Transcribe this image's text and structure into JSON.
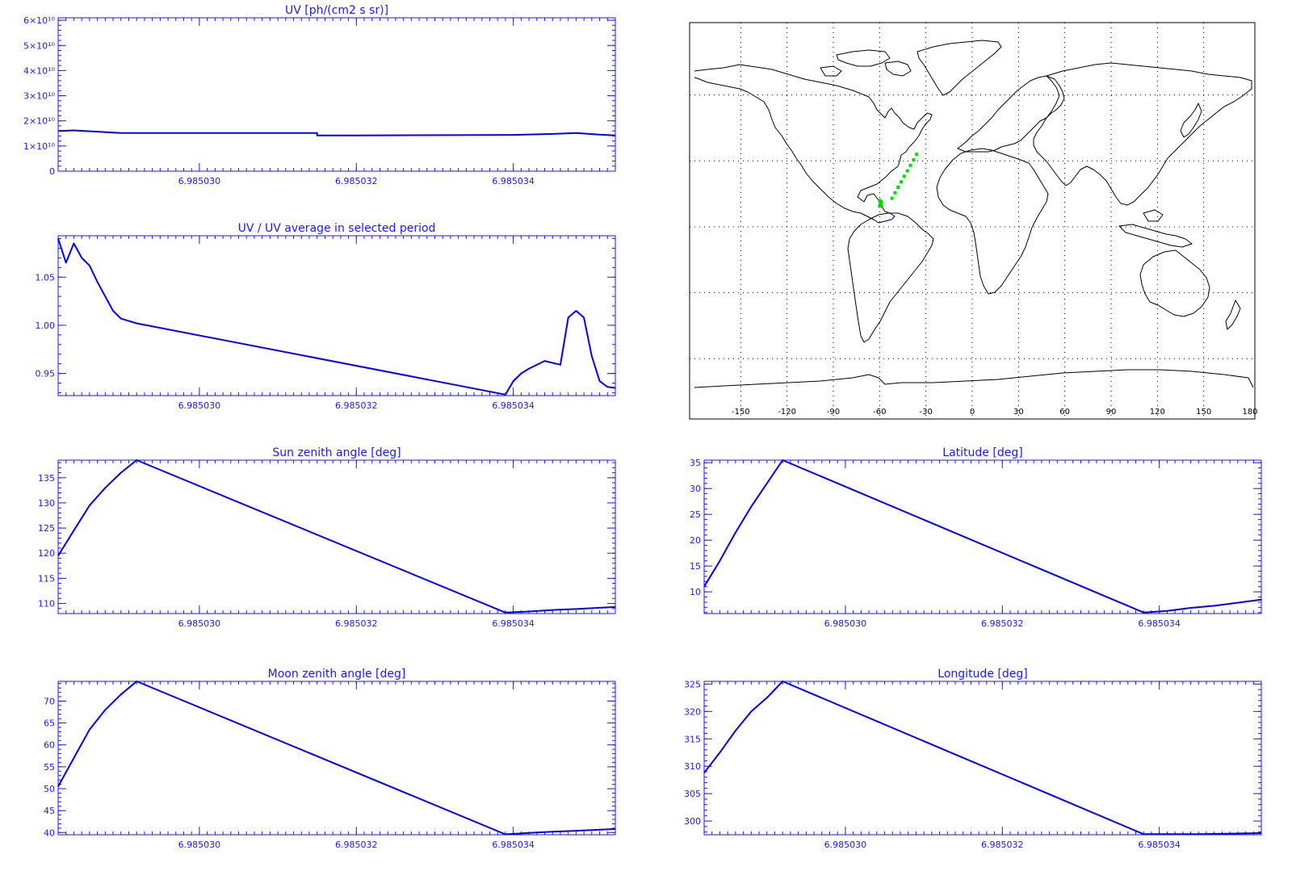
{
  "chart_data": [
    {
      "id": "uv",
      "type": "line",
      "title": "UV [ph/(cm2 s sr)]",
      "xlim": [
        6.9850282,
        6.9850353
      ],
      "xticks": [
        6.98503,
        6.985032,
        6.985034
      ],
      "xtick_labels": [
        "6.985030",
        "6.985032",
        "6.985034"
      ],
      "ylim": [
        0,
        61000000000.0
      ],
      "yticks": [
        0,
        10000000000.0,
        20000000000.0,
        30000000000.0,
        40000000000.0,
        50000000000.0,
        60000000000.0
      ],
      "ytick_labels": [
        "0",
        "1×10¹⁰",
        "2×10¹⁰",
        "3×10¹⁰",
        "4×10¹⁰",
        "5×10¹⁰",
        "6×10¹⁰"
      ],
      "x": [
        6.9850282,
        6.9850284,
        6.9850287,
        6.985029,
        6.9850315,
        6.9850315,
        6.985032,
        6.985034,
        6.9850345,
        6.9850348,
        6.9850351,
        6.9850353
      ],
      "y": [
        16000000000.0,
        16200000000.0,
        15700000000.0,
        15200000000.0,
        15200000000.0,
        14200000000.0,
        14200000000.0,
        14400000000.0,
        14800000000.0,
        15200000000.0,
        14500000000.0,
        14200000000.0
      ]
    },
    {
      "id": "uv_ratio",
      "type": "line",
      "title": "UV / UV average in selected period",
      "xlim": [
        6.9850282,
        6.9850353
      ],
      "xticks": [
        6.98503,
        6.985032,
        6.985034
      ],
      "xtick_labels": [
        "6.985030",
        "6.985032",
        "6.985034"
      ],
      "ylim": [
        0.927,
        1.093
      ],
      "yticks": [
        0.95,
        1.0,
        1.05
      ],
      "ytick_labels": [
        "0.95",
        "1.00",
        "1.05"
      ],
      "x": [
        6.9850282,
        6.9850283,
        6.9850284,
        6.9850285,
        6.9850286,
        6.9850287,
        6.9850288,
        6.9850289,
        6.985029,
        6.9850292,
        6.9850339,
        6.985034,
        6.9850341,
        6.9850342,
        6.9850344,
        6.9850346,
        6.9850347,
        6.9850348,
        6.9850349,
        6.985035,
        6.9850351,
        6.9850352,
        6.9850353
      ],
      "y": [
        1.09,
        1.065,
        1.085,
        1.07,
        1.062,
        1.045,
        1.03,
        1.015,
        1.007,
        1.002,
        0.928,
        0.942,
        0.95,
        0.955,
        0.963,
        0.959,
        1.008,
        1.015,
        1.008,
        0.968,
        0.942,
        0.936,
        0.935
      ]
    },
    {
      "id": "sza",
      "type": "line",
      "title": "Sun zenith angle [deg]",
      "xlim": [
        6.9850282,
        6.9850353
      ],
      "xticks": [
        6.98503,
        6.985032,
        6.985034
      ],
      "xtick_labels": [
        "6.985030",
        "6.985032",
        "6.985034"
      ],
      "ylim": [
        108,
        138.5
      ],
      "yticks": [
        110,
        115,
        120,
        125,
        130,
        135
      ],
      "ytick_labels": [
        "110",
        "115",
        "120",
        "125",
        "130",
        "135"
      ],
      "x": [
        6.9850282,
        6.9850284,
        6.9850286,
        6.9850288,
        6.985029,
        6.9850292,
        6.9850339,
        6.9850342,
        6.9850345,
        6.9850348,
        6.9850353
      ],
      "y": [
        119.5,
        124.5,
        129.5,
        133.0,
        136.0,
        138.5,
        108.2,
        108.4,
        108.7,
        108.9,
        109.3
      ]
    },
    {
      "id": "mza",
      "type": "line",
      "title": "Moon zenith angle [deg]",
      "xlim": [
        6.9850282,
        6.9850353
      ],
      "xticks": [
        6.98503,
        6.985032,
        6.985034
      ],
      "xtick_labels": [
        "6.985030",
        "6.985032",
        "6.985034"
      ],
      "ylim": [
        39.5,
        74.5
      ],
      "yticks": [
        40,
        45,
        50,
        55,
        60,
        65,
        70
      ],
      "ytick_labels": [
        "40",
        "45",
        "50",
        "55",
        "60",
        "65",
        "70"
      ],
      "x": [
        6.9850282,
        6.9850284,
        6.9850286,
        6.9850288,
        6.985029,
        6.9850292,
        6.9850339,
        6.9850342,
        6.9850345,
        6.9850348,
        6.9850353
      ],
      "y": [
        50.5,
        57.0,
        63.5,
        68.0,
        71.5,
        74.5,
        39.6,
        39.9,
        40.2,
        40.4,
        40.8
      ]
    },
    {
      "id": "lat",
      "type": "line",
      "title": "Latitude [deg]",
      "xlim": [
        6.9850282,
        6.9850353
      ],
      "xticks": [
        6.98503,
        6.985032,
        6.985034
      ],
      "xtick_labels": [
        "6.985030",
        "6.985032",
        "6.985034"
      ],
      "ylim": [
        5.8,
        35.5
      ],
      "yticks": [
        10,
        15,
        20,
        25,
        30,
        35
      ],
      "ytick_labels": [
        "10",
        "15",
        "20",
        "25",
        "30",
        "35"
      ],
      "x": [
        6.9850282,
        6.9850284,
        6.9850286,
        6.9850288,
        6.985029,
        6.9850292,
        6.9850338,
        6.9850341,
        6.9850344,
        6.9850347,
        6.985035,
        6.9850353
      ],
      "y": [
        11.0,
        16.0,
        21.5,
        26.5,
        31.0,
        35.5,
        6.0,
        6.3,
        6.9,
        7.3,
        7.9,
        8.5
      ]
    },
    {
      "id": "lon",
      "type": "line",
      "title": "Longitude [deg]",
      "xlim": [
        6.9850282,
        6.9850353
      ],
      "xticks": [
        6.98503,
        6.985032,
        6.985034
      ],
      "xtick_labels": [
        "6.985030",
        "6.985032",
        "6.985034"
      ],
      "ylim": [
        297.5,
        325.5
      ],
      "yticks": [
        300,
        305,
        310,
        315,
        320,
        325
      ],
      "ytick_labels": [
        "300",
        "305",
        "310",
        "315",
        "320",
        "325"
      ],
      "x": [
        6.9850282,
        6.9850284,
        6.9850286,
        6.9850288,
        6.985029,
        6.9850292,
        6.9850338,
        6.9850345,
        6.9850353
      ],
      "y": [
        308.8,
        312.5,
        316.5,
        320.0,
        322.5,
        325.5,
        297.6,
        297.6,
        297.8
      ]
    }
  ],
  "map": {
    "lon_tick_labels": [
      "-150",
      "-120",
      "-90",
      "-60",
      "-30",
      "0",
      "30",
      "60",
      "90",
      "120",
      "150",
      "180"
    ],
    "track": [
      [
        -60,
        9.5
      ],
      [
        -59.5,
        10.5
      ],
      [
        -59,
        11.5
      ],
      [
        -60,
        12
      ],
      [
        -59,
        10
      ],
      [
        -52,
        13
      ],
      [
        -50,
        15.5
      ],
      [
        -48,
        18
      ],
      [
        -46,
        20.5
      ],
      [
        -44,
        23
      ],
      [
        -42,
        25.5
      ],
      [
        -40,
        28
      ],
      [
        -38,
        30.5
      ],
      [
        -36,
        33
      ]
    ]
  }
}
